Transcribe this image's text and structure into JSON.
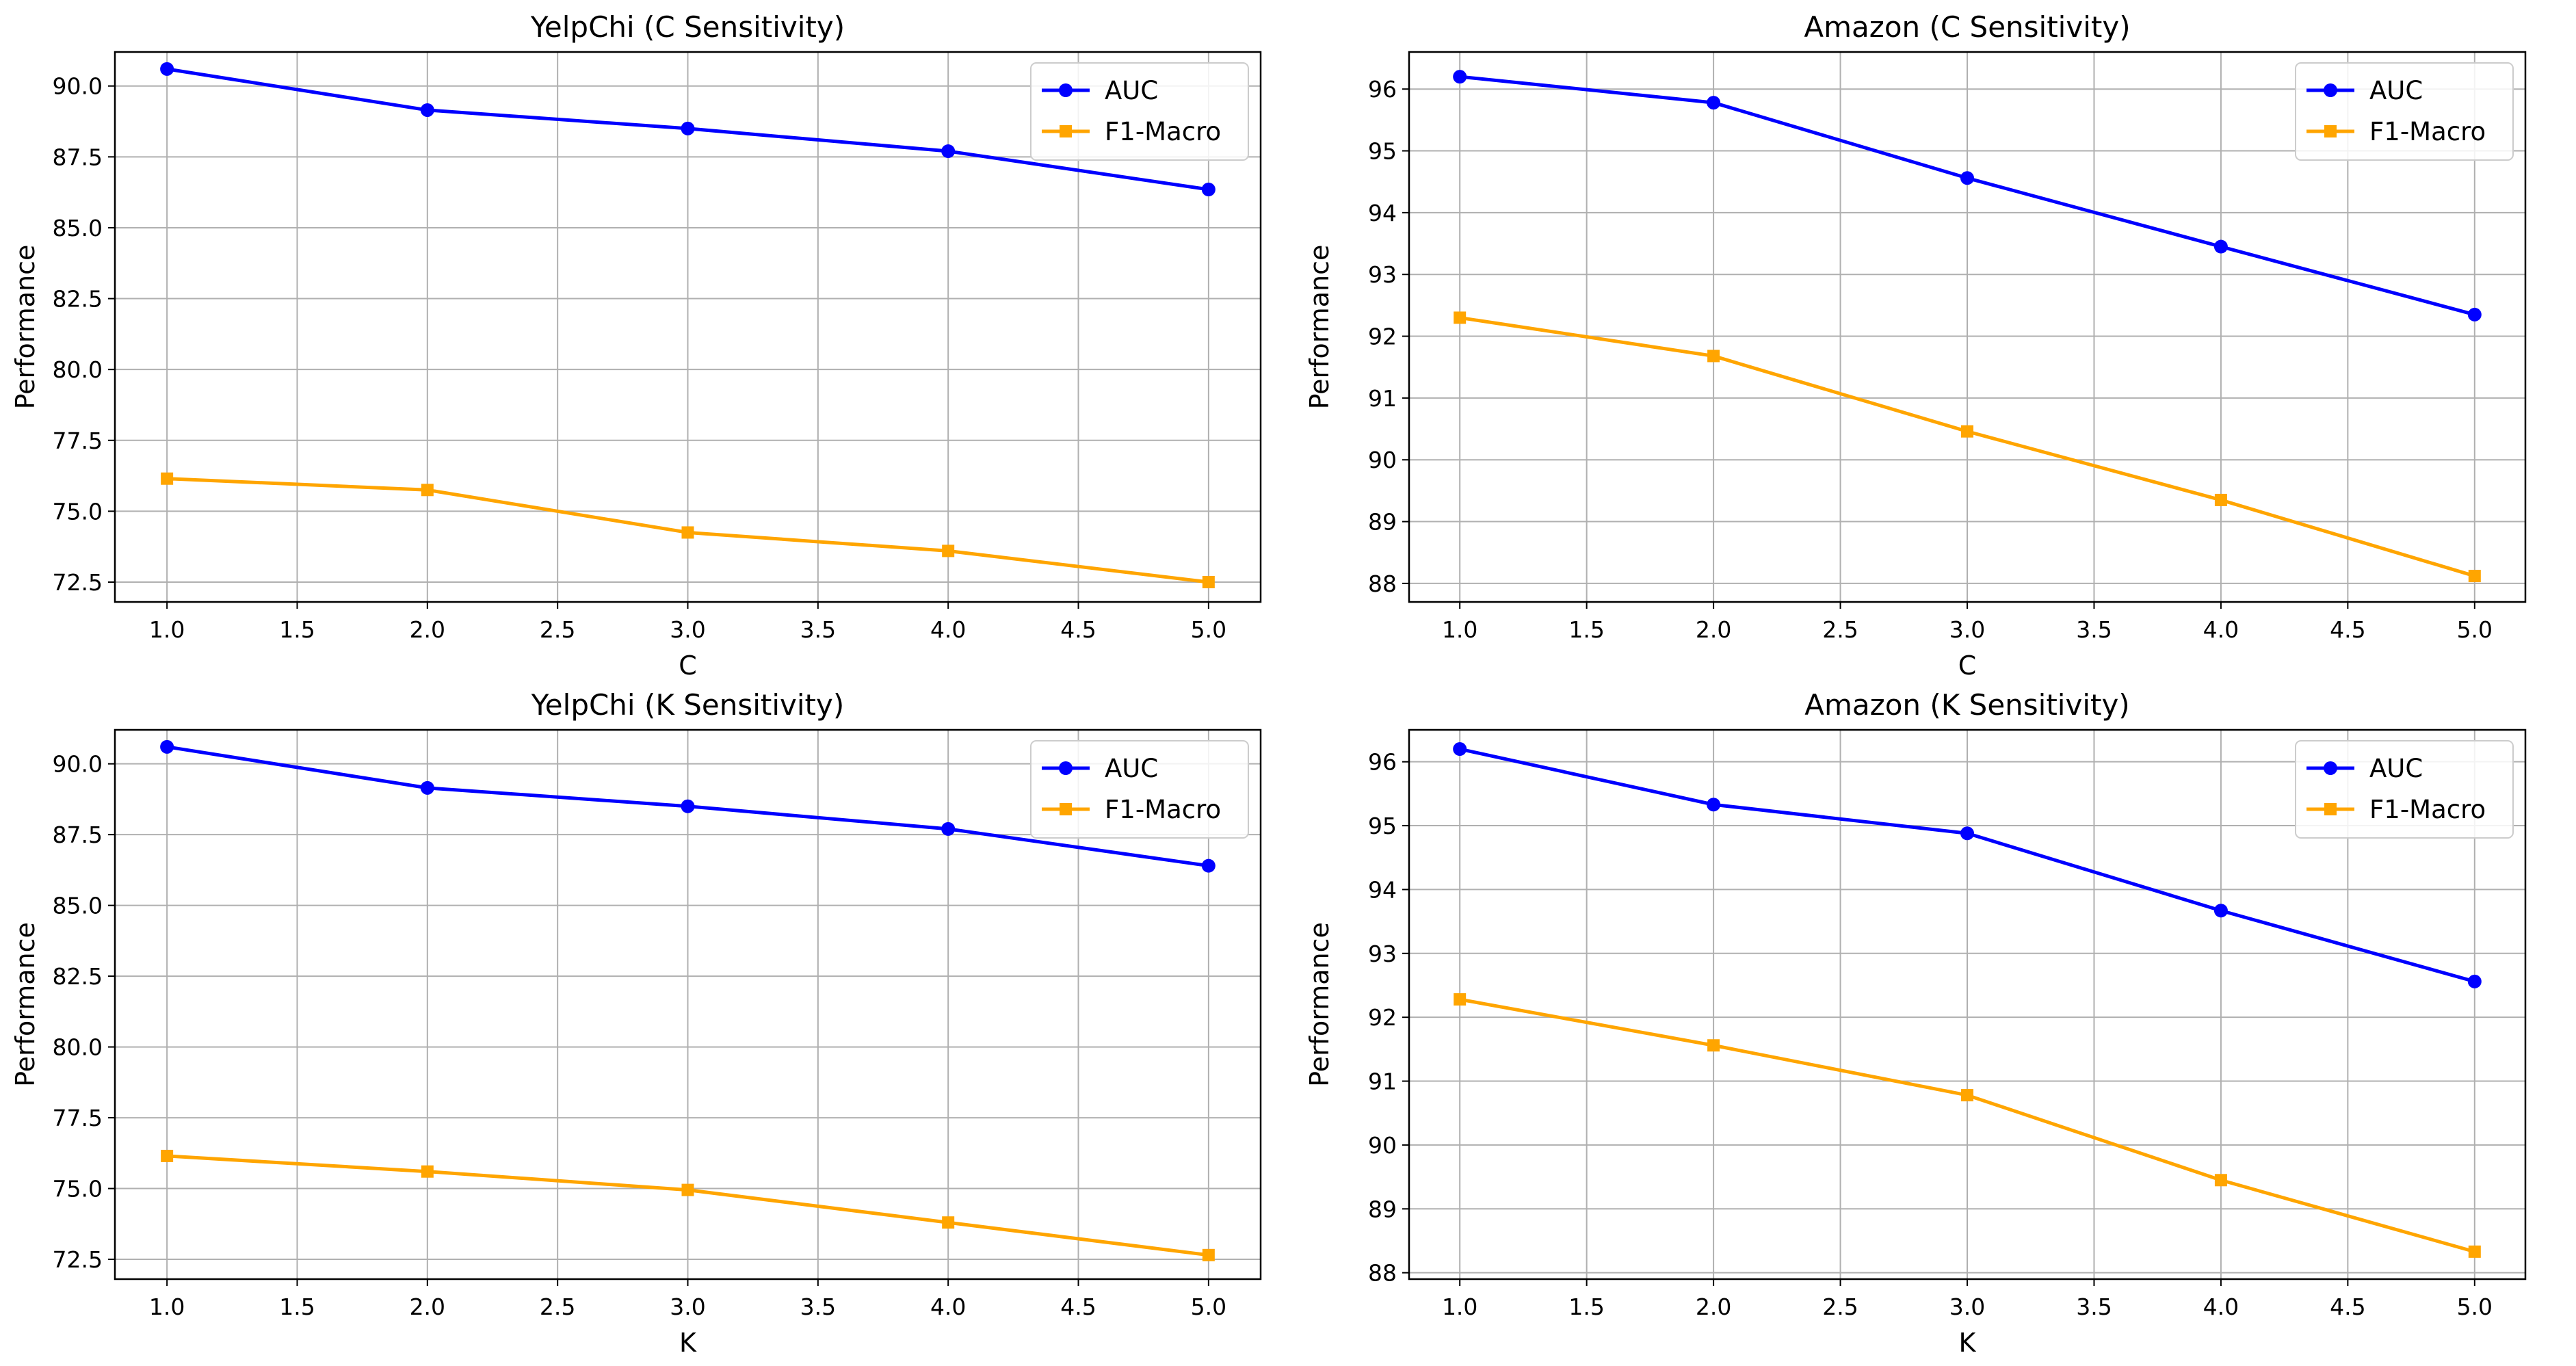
{
  "chart_data": [
    {
      "type": "line",
      "title": "YelpChi (C Sensitivity)",
      "xlabel": "C",
      "ylabel": "Performance",
      "x": [
        1.0,
        2.0,
        3.0,
        4.0,
        5.0
      ],
      "xlim": [
        0.8,
        5.2
      ],
      "ylim": [
        71.8,
        91.2
      ],
      "xticks": [
        "1.0",
        "1.5",
        "2.0",
        "2.5",
        "3.0",
        "3.5",
        "4.0",
        "4.5",
        "5.0"
      ],
      "yticks": [
        "72.5",
        "75.0",
        "77.5",
        "80.0",
        "82.5",
        "85.0",
        "87.5",
        "90.0"
      ],
      "grid": true,
      "legend_position": "top-right",
      "series": [
        {
          "name": "AUC",
          "color": "#0000ff",
          "marker": "circle",
          "values": [
            90.6,
            89.15,
            88.5,
            87.7,
            86.35
          ]
        },
        {
          "name": "F1-Macro",
          "color": "#ffa500",
          "marker": "square",
          "values": [
            76.15,
            75.75,
            74.25,
            73.6,
            72.5
          ]
        }
      ]
    },
    {
      "type": "line",
      "title": "Amazon (C Sensitivity)",
      "xlabel": "C",
      "ylabel": "Performance",
      "x": [
        1.0,
        2.0,
        3.0,
        4.0,
        5.0
      ],
      "xlim": [
        0.8,
        5.2
      ],
      "ylim": [
        87.7,
        96.6
      ],
      "xticks": [
        "1.0",
        "1.5",
        "2.0",
        "2.5",
        "3.0",
        "3.5",
        "4.0",
        "4.5",
        "5.0"
      ],
      "yticks": [
        "88",
        "89",
        "90",
        "91",
        "92",
        "93",
        "94",
        "95",
        "96"
      ],
      "grid": true,
      "legend_position": "top-right",
      "series": [
        {
          "name": "AUC",
          "color": "#0000ff",
          "marker": "circle",
          "values": [
            96.2,
            95.78,
            94.56,
            93.45,
            92.35
          ]
        },
        {
          "name": "F1-Macro",
          "color": "#ffa500",
          "marker": "square",
          "values": [
            92.3,
            91.68,
            90.46,
            89.35,
            88.12
          ]
        }
      ]
    },
    {
      "type": "line",
      "title": "YelpChi (K Sensitivity)",
      "xlabel": "K",
      "ylabel": "Performance",
      "x": [
        1.0,
        2.0,
        3.0,
        4.0,
        5.0
      ],
      "xlim": [
        0.8,
        5.2
      ],
      "ylim": [
        71.8,
        91.2
      ],
      "xticks": [
        "1.0",
        "1.5",
        "2.0",
        "2.5",
        "3.0",
        "3.5",
        "4.0",
        "4.5",
        "5.0"
      ],
      "yticks": [
        "72.5",
        "75.0",
        "77.5",
        "80.0",
        "82.5",
        "85.0",
        "87.5",
        "90.0"
      ],
      "grid": true,
      "legend_position": "top-right",
      "series": [
        {
          "name": "AUC",
          "color": "#0000ff",
          "marker": "circle",
          "values": [
            90.6,
            89.15,
            88.5,
            87.7,
            86.4
          ]
        },
        {
          "name": "F1-Macro",
          "color": "#ffa500",
          "marker": "square",
          "values": [
            76.15,
            75.6,
            74.95,
            73.8,
            72.65
          ]
        }
      ]
    },
    {
      "type": "line",
      "title": "Amazon (K Sensitivity)",
      "xlabel": "K",
      "ylabel": "Performance",
      "x": [
        1.0,
        2.0,
        3.0,
        4.0,
        5.0
      ],
      "xlim": [
        0.8,
        5.2
      ],
      "ylim": [
        87.9,
        96.5
      ],
      "xticks": [
        "1.0",
        "1.5",
        "2.0",
        "2.5",
        "3.0",
        "3.5",
        "4.0",
        "4.5",
        "5.0"
      ],
      "yticks": [
        "88",
        "89",
        "90",
        "91",
        "92",
        "93",
        "94",
        "95",
        "96"
      ],
      "grid": true,
      "legend_position": "top-right",
      "series": [
        {
          "name": "AUC",
          "color": "#0000ff",
          "marker": "circle",
          "values": [
            96.2,
            95.33,
            94.88,
            93.67,
            92.56
          ]
        },
        {
          "name": "F1-Macro",
          "color": "#ffa500",
          "marker": "square",
          "values": [
            92.28,
            91.56,
            90.78,
            89.45,
            88.33
          ]
        }
      ]
    }
  ]
}
